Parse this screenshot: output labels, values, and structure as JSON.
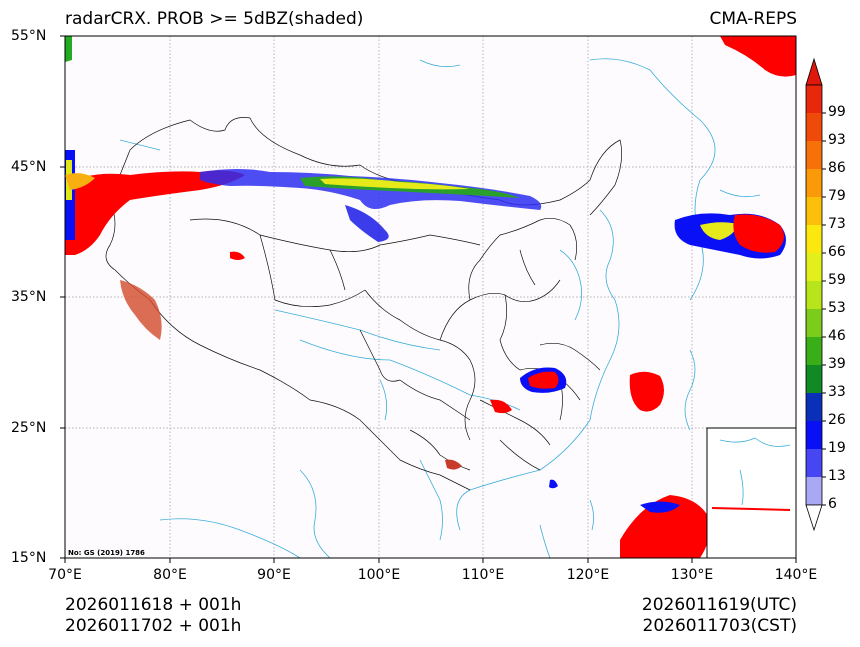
{
  "header": {
    "title_left": "radarCRX. PROB >= 5dBZ(shaded)",
    "title_right": "CMA-REPS"
  },
  "axes": {
    "lat_labels": [
      "55°N",
      "45°N",
      "35°N",
      "25°N",
      "15°N"
    ],
    "lon_labels": [
      "70°E",
      "80°E",
      "90°E",
      "100°E",
      "110°E",
      "120°E",
      "130°E",
      "140°E"
    ]
  },
  "map_note": "No: GS (2019) 1786",
  "colorbar": {
    "labels": [
      "99",
      "93",
      "86",
      "79",
      "73",
      "66",
      "59",
      "53",
      "46",
      "39",
      "33",
      "26",
      "19",
      "13",
      "6"
    ],
    "colors": [
      "#e8280c",
      "#f04a0a",
      "#f7700a",
      "#fb9a08",
      "#fcc00a",
      "#fbe80e",
      "#e3ef1a",
      "#b8e41c",
      "#7ccc1a",
      "#3aae18",
      "#128a24",
      "#0a2fb8",
      "#0a10f6",
      "#4646f2",
      "#a8a8f4"
    ],
    "over_color": "#e0180c",
    "under_color": "#ffffff"
  },
  "footer": {
    "init_utc": "2026011618  +  001h",
    "init_cst": "2026011702  +  001h",
    "valid_utc": "2026011619(UTC)",
    "valid_cst": "2026011703(CST)"
  }
}
